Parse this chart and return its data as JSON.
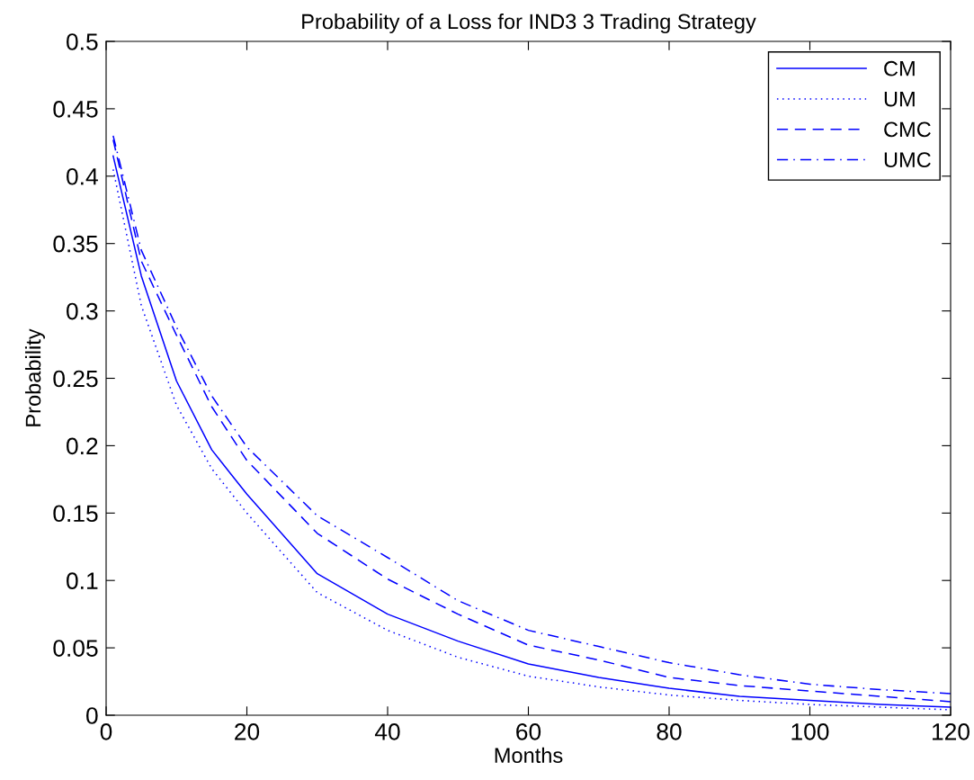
{
  "chart_data": {
    "type": "line",
    "title": "Probability of a Loss for IND3 3 Trading Strategy",
    "xlabel": "Months",
    "ylabel": "Probability",
    "x": [
      1,
      5,
      10,
      15,
      20,
      30,
      40,
      50,
      60,
      70,
      80,
      90,
      100,
      110,
      120
    ],
    "series": [
      {
        "name": "CM",
        "color": "#0000ff",
        "line_style": "solid",
        "values": [
          0.415,
          0.326,
          0.248,
          0.197,
          0.164,
          0.105,
          0.075,
          0.055,
          0.038,
          0.028,
          0.02,
          0.014,
          0.011,
          0.008,
          0.006
        ]
      },
      {
        "name": "UM",
        "color": "#0000ff",
        "line_style": "dotted",
        "values": [
          0.405,
          0.304,
          0.23,
          0.183,
          0.15,
          0.091,
          0.063,
          0.043,
          0.029,
          0.021,
          0.015,
          0.011,
          0.008,
          0.006,
          0.004
        ]
      },
      {
        "name": "CMC",
        "color": "#0000ff",
        "line_style": "dashed",
        "values": [
          0.427,
          0.337,
          0.282,
          0.229,
          0.189,
          0.135,
          0.101,
          0.075,
          0.052,
          0.041,
          0.028,
          0.022,
          0.018,
          0.014,
          0.01
        ]
      },
      {
        "name": "UMC",
        "color": "#0000ff",
        "line_style": "dashdot",
        "values": [
          0.43,
          0.345,
          0.288,
          0.237,
          0.199,
          0.148,
          0.117,
          0.085,
          0.063,
          0.051,
          0.039,
          0.03,
          0.023,
          0.019,
          0.016
        ]
      }
    ],
    "xlim": [
      0,
      120
    ],
    "xticks": [
      0,
      20,
      40,
      60,
      80,
      100,
      120
    ],
    "ylim": [
      0,
      0.5
    ],
    "yticks": [
      0,
      0.05,
      0.1,
      0.15,
      0.2,
      0.25,
      0.3,
      0.35,
      0.4,
      0.45,
      0.5
    ],
    "grid": false,
    "legend": "top right",
    "marker": "none"
  }
}
